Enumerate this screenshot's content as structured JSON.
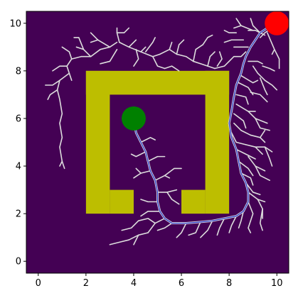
{
  "chart_data": {
    "type": "scatter",
    "title": "",
    "xlabel": "",
    "ylabel": "",
    "xlim": [
      -0.5,
      10.5
    ],
    "ylim": [
      -0.5,
      10.5
    ],
    "xticks": [
      0,
      2,
      4,
      6,
      8,
      10
    ],
    "yticks": [
      0,
      2,
      4,
      6,
      8,
      10
    ],
    "grid": false,
    "legend": "none",
    "colors": {
      "background": "#440154",
      "obstacle": "#bdbe00",
      "tree": "#dddddd",
      "path": "#2030c8",
      "start": "#008000",
      "goal": "#ff0000"
    },
    "obstacles": [
      {
        "x": [
          2,
          3
        ],
        "y": [
          2,
          8
        ]
      },
      {
        "x": [
          2,
          8
        ],
        "y": [
          7,
          8
        ]
      },
      {
        "x": [
          7,
          8
        ],
        "y": [
          2,
          8
        ]
      },
      {
        "x": [
          3,
          4
        ],
        "y": [
          2,
          3
        ]
      },
      {
        "x": [
          6,
          7
        ],
        "y": [
          2,
          3
        ]
      }
    ],
    "start": {
      "x": 4,
      "y": 6
    },
    "goal": {
      "x": 10,
      "y": 10
    },
    "path": [
      [
        10,
        10
      ],
      [
        9.6,
        9.8
      ],
      [
        9.3,
        9.6
      ],
      [
        9.1,
        9.3
      ],
      [
        8.9,
        9.0
      ],
      [
        8.7,
        8.6
      ],
      [
        8.6,
        8.3
      ],
      [
        8.5,
        7.9
      ],
      [
        8.3,
        7.4
      ],
      [
        8.2,
        6.9
      ],
      [
        8.1,
        6.3
      ],
      [
        8.0,
        5.8
      ],
      [
        8.1,
        5.2
      ],
      [
        8.3,
        4.7
      ],
      [
        8.4,
        4.2
      ],
      [
        8.5,
        3.7
      ],
      [
        8.7,
        3.3
      ],
      [
        8.8,
        2.9
      ],
      [
        8.8,
        2.5
      ],
      [
        8.6,
        2.1
      ],
      [
        8.3,
        1.9
      ],
      [
        7.8,
        1.8
      ],
      [
        7.3,
        1.7
      ],
      [
        6.8,
        1.65
      ],
      [
        6.2,
        1.6
      ],
      [
        5.6,
        1.6
      ],
      [
        5.3,
        1.8
      ],
      [
        5.1,
        2.1
      ],
      [
        5.0,
        2.5
      ],
      [
        5.0,
        2.9
      ],
      [
        4.9,
        3.4
      ],
      [
        4.7,
        3.8
      ],
      [
        4.6,
        4.2
      ],
      [
        4.5,
        4.6
      ],
      [
        4.3,
        5.0
      ],
      [
        4.1,
        5.4
      ],
      [
        4,
        6
      ]
    ],
    "tree": [
      [
        [
          9.8,
          9.8
        ],
        [
          9.5,
          9.6
        ],
        [
          9.3,
          9.4
        ]
      ],
      [
        [
          9.6,
          9.6
        ],
        [
          9.9,
          8.9
        ],
        [
          9.8,
          8.7
        ]
      ],
      [
        [
          9.9,
          8.9
        ],
        [
          10.1,
          8.5
        ],
        [
          10.1,
          8.1
        ]
      ],
      [
        [
          9.5,
          9.5
        ],
        [
          9.1,
          9.7
        ],
        [
          8.8,
          9.7
        ]
      ],
      [
        [
          9.3,
          9.6
        ],
        [
          9.0,
          9.9
        ],
        [
          8.9,
          10.2
        ]
      ],
      [
        [
          9.0,
          9.7
        ],
        [
          8.5,
          9.9
        ],
        [
          8.2,
          9.8
        ]
      ],
      [
        [
          8.5,
          9.9
        ],
        [
          8.3,
          10.2
        ]
      ],
      [
        [
          8.3,
          9.6
        ],
        [
          8.0,
          9.6
        ],
        [
          7.8,
          9.7
        ]
      ],
      [
        [
          8.6,
          9.3
        ],
        [
          8.1,
          9.3
        ],
        [
          7.8,
          9.2
        ]
      ],
      [
        [
          8.8,
          9.0
        ],
        [
          8.4,
          9.0
        ],
        [
          8.2,
          9.0
        ]
      ],
      [
        [
          8.7,
          8.8
        ],
        [
          8.5,
          8.6
        ],
        [
          8.2,
          8.6
        ],
        [
          8.0,
          8.4
        ]
      ],
      [
        [
          8.8,
          8.4
        ],
        [
          9.2,
          8.4
        ],
        [
          9.4,
          8.3
        ]
      ],
      [
        [
          9.0,
          8.2
        ],
        [
          9.2,
          7.9
        ],
        [
          9.5,
          7.6
        ]
      ],
      [
        [
          9.4,
          8.2
        ],
        [
          9.7,
          8.1
        ],
        [
          9.9,
          8.0
        ]
      ],
      [
        [
          9.5,
          7.6
        ],
        [
          9.8,
          7.4
        ],
        [
          10.0,
          7.2
        ]
      ],
      [
        [
          9.3,
          7.7
        ],
        [
          9.5,
          7.2
        ],
        [
          9.6,
          7.0
        ]
      ],
      [
        [
          8.5,
          7.8
        ],
        [
          9.0,
          7.5
        ],
        [
          9.2,
          7.6
        ]
      ],
      [
        [
          8.4,
          7.5
        ],
        [
          8.8,
          7.3
        ],
        [
          9.0,
          7.0
        ]
      ],
      [
        [
          8.9,
          7.1
        ],
        [
          9.3,
          7.0
        ],
        [
          9.6,
          6.7
        ]
      ],
      [
        [
          8.3,
          7.0
        ],
        [
          8.7,
          6.9
        ],
        [
          8.8,
          6.6
        ]
      ],
      [
        [
          8.3,
          6.6
        ],
        [
          8.8,
          6.3
        ],
        [
          9.1,
          6.3
        ]
      ],
      [
        [
          8.8,
          6.3
        ],
        [
          9.1,
          6.0
        ],
        [
          9.6,
          5.8
        ]
      ],
      [
        [
          9.1,
          6.0
        ],
        [
          9.3,
          5.6
        ],
        [
          9.7,
          5.5
        ]
      ],
      [
        [
          8.2,
          6.2
        ],
        [
          8.6,
          5.9
        ],
        [
          8.7,
          5.6
        ]
      ],
      [
        [
          8.2,
          5.8
        ],
        [
          8.5,
          5.5
        ],
        [
          8.9,
          5.3
        ]
      ],
      [
        [
          8.9,
          5.3
        ],
        [
          9.3,
          5.2
        ],
        [
          9.5,
          5.0
        ]
      ],
      [
        [
          9.3,
          5.2
        ],
        [
          9.5,
          5.5
        ]
      ],
      [
        [
          8.1,
          5.4
        ],
        [
          8.3,
          5.0
        ],
        [
          8.7,
          4.9
        ]
      ],
      [
        [
          8.7,
          4.9
        ],
        [
          9.1,
          4.8
        ],
        [
          9.4,
          4.5
        ]
      ],
      [
        [
          9.1,
          4.8
        ],
        [
          9.5,
          4.8
        ],
        [
          9.8,
          4.6
        ]
      ],
      [
        [
          9.5,
          4.8
        ],
        [
          9.7,
          4.3
        ],
        [
          9.8,
          4.0
        ]
      ],
      [
        [
          8.3,
          4.7
        ],
        [
          8.7,
          4.5
        ],
        [
          9.1,
          4.3
        ]
      ],
      [
        [
          8.8,
          4.4
        ],
        [
          9.1,
          4.0
        ],
        [
          9.5,
          3.8
        ]
      ],
      [
        [
          9.1,
          4.0
        ],
        [
          9.3,
          3.6
        ],
        [
          9.7,
          3.4
        ]
      ],
      [
        [
          8.4,
          4.2
        ],
        [
          8.8,
          3.9
        ],
        [
          9.0,
          3.6
        ]
      ],
      [
        [
          8.5,
          3.7
        ],
        [
          8.9,
          3.5
        ],
        [
          9.0,
          3.2
        ]
      ],
      [
        [
          8.7,
          3.3
        ],
        [
          9.0,
          2.9
        ],
        [
          9.3,
          2.8
        ]
      ],
      [
        [
          8.8,
          2.9
        ],
        [
          9.2,
          2.6
        ],
        [
          9.5,
          2.5
        ]
      ],
      [
        [
          9.2,
          2.6
        ],
        [
          9.4,
          2.2
        ],
        [
          9.4,
          1.8
        ]
      ],
      [
        [
          9.4,
          2.2
        ],
        [
          9.3,
          1.6
        ],
        [
          9.4,
          1.3
        ]
      ],
      [
        [
          8.8,
          2.5
        ],
        [
          9.0,
          2.0
        ],
        [
          8.9,
          1.7
        ]
      ],
      [
        [
          8.9,
          1.7
        ],
        [
          8.8,
          1.4
        ],
        [
          8.9,
          1.2
        ]
      ],
      [
        [
          8.6,
          2.1
        ],
        [
          8.5,
          1.7
        ],
        [
          8.4,
          1.4
        ]
      ],
      [
        [
          8.3,
          1.9
        ],
        [
          8.1,
          1.5
        ],
        [
          8.0,
          1.2
        ]
      ],
      [
        [
          7.8,
          1.8
        ],
        [
          7.6,
          1.4
        ],
        [
          7.5,
          1.1
        ]
      ],
      [
        [
          7.3,
          1.7
        ],
        [
          7.1,
          1.3
        ],
        [
          6.8,
          1.0
        ]
      ],
      [
        [
          6.8,
          1.65
        ],
        [
          6.6,
          1.2
        ],
        [
          6.3,
          1.1
        ]
      ],
      [
        [
          6.2,
          1.6
        ],
        [
          6.0,
          1.2
        ],
        [
          5.8,
          1.0
        ]
      ],
      [
        [
          5.6,
          1.6
        ],
        [
          5.3,
          1.4
        ],
        [
          5.0,
          1.3
        ]
      ],
      [
        [
          5.3,
          1.8
        ],
        [
          4.9,
          1.6
        ],
        [
          4.6,
          1.2
        ]
      ],
      [
        [
          4.9,
          1.6
        ],
        [
          4.6,
          1.8
        ],
        [
          4.2,
          1.7
        ]
      ],
      [
        [
          4.6,
          1.2
        ],
        [
          4.2,
          1.1
        ],
        [
          3.8,
          0.9
        ]
      ],
      [
        [
          4.2,
          1.1
        ],
        [
          4.0,
          0.7
        ]
      ],
      [
        [
          3.8,
          0.9
        ],
        [
          3.4,
          0.8
        ],
        [
          3.0,
          0.7
        ]
      ],
      [
        [
          4.2,
          1.7
        ],
        [
          3.9,
          1.4
        ],
        [
          3.5,
          1.3
        ]
      ],
      [
        [
          5.1,
          2.1
        ],
        [
          4.6,
          2.1
        ],
        [
          4.3,
          1.9
        ]
      ],
      [
        [
          5.0,
          2.5
        ],
        [
          4.6,
          2.5
        ],
        [
          4.3,
          2.6
        ]
      ],
      [
        [
          5.0,
          2.9
        ],
        [
          5.4,
          2.9
        ],
        [
          5.8,
          3.0
        ]
      ],
      [
        [
          5.4,
          2.9
        ],
        [
          5.6,
          2.6
        ],
        [
          5.9,
          2.4
        ]
      ],
      [
        [
          4.9,
          3.4
        ],
        [
          5.3,
          3.6
        ],
        [
          5.5,
          3.5
        ]
      ],
      [
        [
          5.3,
          3.6
        ],
        [
          5.7,
          3.9
        ],
        [
          6.0,
          3.9
        ]
      ],
      [
        [
          4.7,
          3.8
        ],
        [
          4.3,
          3.7
        ],
        [
          4.0,
          3.5
        ]
      ],
      [
        [
          4.3,
          3.7
        ],
        [
          4.1,
          3.9
        ]
      ],
      [
        [
          4.6,
          4.2
        ],
        [
          5.0,
          4.4
        ],
        [
          5.3,
          4.4
        ]
      ],
      [
        [
          4.5,
          4.6
        ],
        [
          4.1,
          4.4
        ],
        [
          3.9,
          4.5
        ]
      ],
      [
        [
          4.3,
          5.0
        ],
        [
          4.7,
          5.2
        ],
        [
          4.9,
          5.1
        ]
      ],
      [
        [
          3.4,
          9.2
        ],
        [
          3.3,
          9.6
        ],
        [
          3.3,
          9.8
        ]
      ],
      [
        [
          3.3,
          9.6
        ],
        [
          3.6,
          9.6
        ],
        [
          3.8,
          9.8
        ]
      ],
      [
        [
          3.3,
          9.2
        ],
        [
          3.0,
          9.0
        ],
        [
          2.6,
          8.9
        ]
      ],
      [
        [
          3.0,
          9.0
        ],
        [
          2.5,
          9.3
        ],
        [
          2.2,
          9.6
        ]
      ],
      [
        [
          2.5,
          9.3
        ],
        [
          2.2,
          9.2
        ]
      ],
      [
        [
          2.6,
          8.9
        ],
        [
          2.2,
          8.6
        ],
        [
          1.8,
          8.6
        ]
      ],
      [
        [
          2.2,
          8.6
        ],
        [
          1.9,
          8.9
        ],
        [
          1.6,
          9.0
        ]
      ],
      [
        [
          1.9,
          8.9
        ],
        [
          1.7,
          9.4
        ],
        [
          1.5,
          9.4
        ]
      ],
      [
        [
          1.8,
          8.6
        ],
        [
          1.4,
          8.5
        ],
        [
          1.2,
          8.2
        ]
      ],
      [
        [
          1.4,
          8.5
        ],
        [
          1.3,
          8.8
        ],
        [
          1.0,
          9.0
        ]
      ],
      [
        [
          1.2,
          8.2
        ],
        [
          1.3,
          7.9
        ],
        [
          1.4,
          7.6
        ]
      ],
      [
        [
          1.2,
          8.2
        ],
        [
          0.9,
          8.2
        ],
        [
          0.6,
          8.0
        ]
      ],
      [
        [
          1.3,
          7.9
        ],
        [
          0.9,
          7.6
        ],
        [
          0.8,
          7.2
        ]
      ],
      [
        [
          0.9,
          7.6
        ],
        [
          0.6,
          7.4
        ],
        [
          0.3,
          7.4
        ]
      ],
      [
        [
          0.8,
          7.2
        ],
        [
          0.9,
          6.8
        ],
        [
          1.0,
          6.2
        ]
      ],
      [
        [
          1.0,
          6.2
        ],
        [
          0.9,
          5.8
        ],
        [
          1.0,
          5.2
        ]
      ],
      [
        [
          1.0,
          5.2
        ],
        [
          0.9,
          4.8
        ],
        [
          1.0,
          4.2
        ],
        [
          1.1,
          3.9
        ]
      ],
      [
        [
          1.0,
          4.2
        ],
        [
          0.9,
          4.0
        ]
      ],
      [
        [
          0.8,
          7.2
        ],
        [
          0.5,
          7.0
        ],
        [
          0.4,
          6.8
        ]
      ],
      [
        [
          3.4,
          9.2
        ],
        [
          3.8,
          9.0
        ],
        [
          4.1,
          9.3
        ]
      ],
      [
        [
          3.8,
          9.0
        ],
        [
          4.3,
          8.8
        ],
        [
          4.5,
          9.0
        ]
      ],
      [
        [
          4.3,
          8.8
        ],
        [
          4.8,
          8.6
        ],
        [
          5.1,
          8.7
        ]
      ],
      [
        [
          4.8,
          8.6
        ],
        [
          5.0,
          8.2
        ],
        [
          5.3,
          8.1
        ]
      ],
      [
        [
          5.1,
          8.7
        ],
        [
          5.5,
          8.9
        ],
        [
          5.6,
          9.2
        ]
      ],
      [
        [
          5.5,
          8.9
        ],
        [
          5.8,
          8.7
        ],
        [
          6.2,
          8.6
        ]
      ],
      [
        [
          5.8,
          8.7
        ],
        [
          5.9,
          9.1
        ],
        [
          6.1,
          9.3
        ]
      ],
      [
        [
          6.2,
          8.6
        ],
        [
          6.5,
          8.4
        ],
        [
          6.8,
          8.3
        ]
      ],
      [
        [
          6.5,
          8.4
        ],
        [
          6.6,
          8.9
        ],
        [
          6.9,
          9.1
        ]
      ],
      [
        [
          6.8,
          8.3
        ],
        [
          7.1,
          8.2
        ],
        [
          7.4,
          8.1
        ]
      ],
      [
        [
          7.1,
          8.2
        ],
        [
          7.2,
          8.6
        ],
        [
          7.4,
          8.8
        ]
      ],
      [
        [
          7.4,
          8.1
        ],
        [
          7.8,
          8.2
        ],
        [
          8.0,
          8.4
        ]
      ],
      [
        [
          4.5,
          8.8
        ],
        [
          4.8,
          9.2
        ],
        [
          4.9,
          9.4
        ]
      ],
      [
        [
          4.1,
          8.9
        ],
        [
          4.2,
          8.5
        ],
        [
          4.0,
          8.2
        ]
      ],
      [
        [
          3.3,
          8.9
        ],
        [
          3.0,
          8.4
        ],
        [
          2.6,
          8.3
        ]
      ],
      [
        [
          5.3,
          8.1
        ],
        [
          5.6,
          8.2
        ],
        [
          5.9,
          8.0
        ]
      ],
      [
        [
          6.9,
          9.1
        ],
        [
          7.1,
          9.4
        ],
        [
          7.3,
          9.5
        ]
      ],
      [
        [
          7.5,
          8.2
        ],
        [
          7.7,
          8.5
        ],
        [
          7.6,
          8.8
        ]
      ]
    ]
  }
}
